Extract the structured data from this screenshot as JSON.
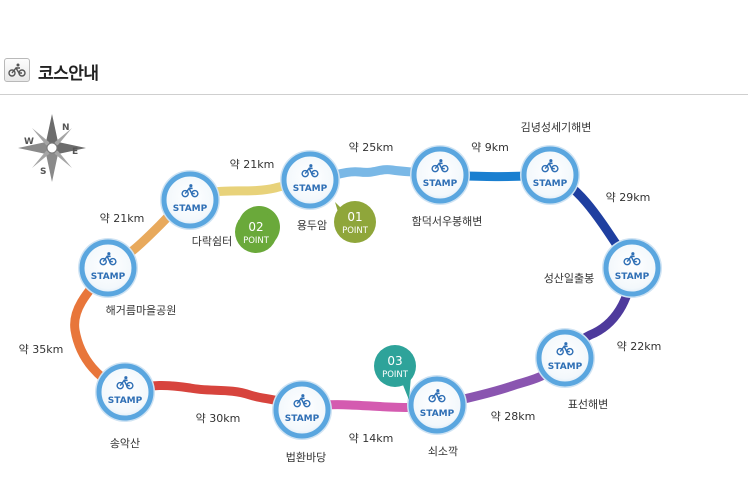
{
  "header": {
    "title": "코스안내",
    "icon": "bicycle-icon"
  },
  "stamp_word": "STAMP",
  "point_word": "POINT",
  "compass": {
    "n": "N",
    "s": "S",
    "e": "E",
    "w": "W"
  },
  "stations": {
    "dalak": "다락쉼터",
    "yongduam": "용두암",
    "hamdeok": "함덕서우봉해변",
    "gimnyeong": "김녕성세기해변",
    "seongsan": "성산일출봉",
    "pyoseon": "표선해변",
    "soesokkak": "쇠소깍",
    "beophwan": "법환바당",
    "songaksan": "송악산",
    "haegeoreum": "해거름마을공원"
  },
  "distances": {
    "d1": "약 21km",
    "d2": "약 25km",
    "d3": "약 9km",
    "d4": "약 29km",
    "d5": "약 22km",
    "d6": "약 28km",
    "d7": "약 14km",
    "d8": "약 30km",
    "d9": "약 35km",
    "d10": "약 21km"
  },
  "points": {
    "p01": "01",
    "p02": "02",
    "p03": "03"
  },
  "colors": {
    "seg1": "#e8d27a",
    "seg2": "#7ab8e6",
    "seg3": "#1a7fd0",
    "seg4": "#1f3fa0",
    "seg5": "#4e3a9c",
    "seg6": "#8a55b0",
    "seg7": "#d45bb0",
    "seg8": "#d7443d",
    "seg9": "#e8763b",
    "seg10": "#e8a95c",
    "point01": "#8fa63a",
    "point02": "#6aa93a",
    "point03": "#2ea39a"
  }
}
